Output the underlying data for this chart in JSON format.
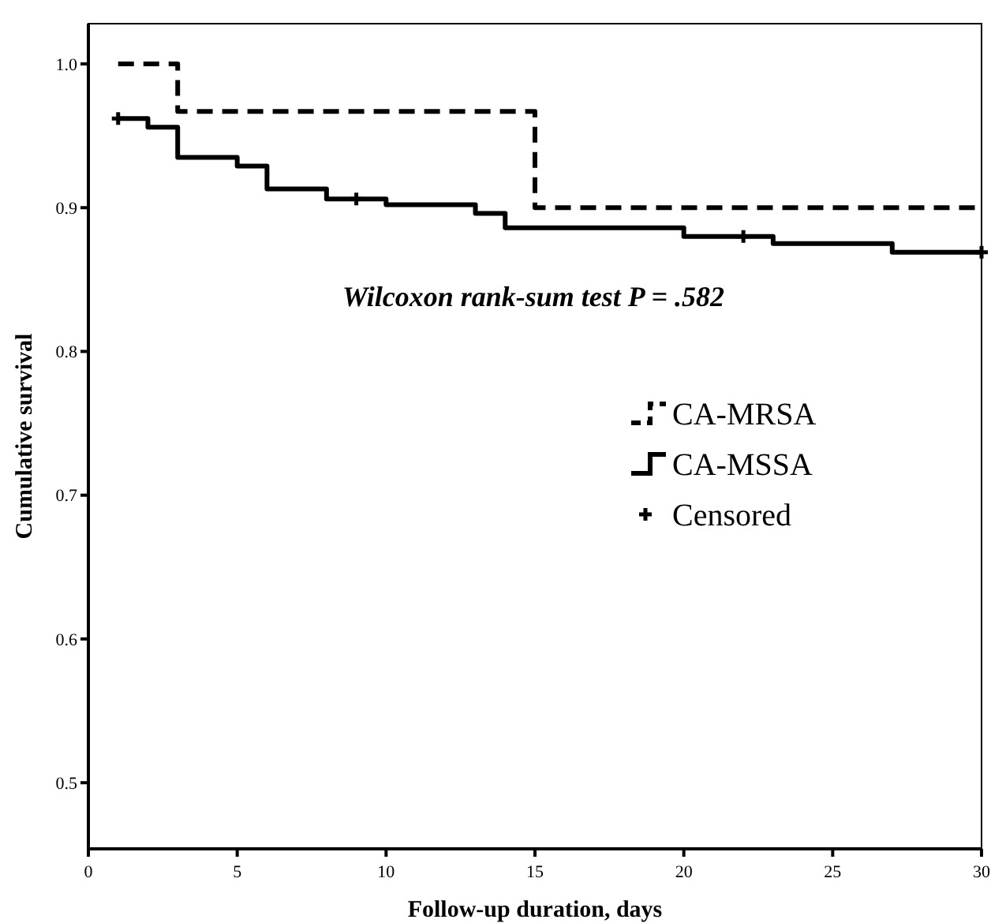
{
  "chart_data": {
    "type": "step",
    "xlabel": "Follow-up duration, days",
    "ylabel": "Cumulative survival",
    "annotations": [
      "Wilcoxon rank-sum test P = .582"
    ],
    "xlim": [
      0,
      30
    ],
    "xticks": [
      0,
      5,
      10,
      15,
      20,
      25,
      30
    ],
    "ylim": [
      0.454,
      1.028
    ],
    "yticks": [
      0.5,
      0.6,
      0.7,
      0.8,
      0.9,
      {
        "value": 1,
        "label": "1.0"
      }
    ],
    "grid": false,
    "legend": "right",
    "series": [
      {
        "name": "CA-MRSA",
        "color": "#000000",
        "line_style": "dashed",
        "x": [
          1,
          3,
          15,
          30
        ],
        "values": [
          1.0,
          0.967,
          0.9,
          0.9
        ]
      },
      {
        "name": "CA-MSSA",
        "color": "#000000",
        "line_style": "solid",
        "x": [
          1,
          2,
          3,
          5,
          6,
          8,
          10,
          13,
          14,
          20,
          23,
          27,
          30
        ],
        "values": [
          0.962,
          0.956,
          0.935,
          0.929,
          0.913,
          0.906,
          0.902,
          0.896,
          0.886,
          0.88,
          0.875,
          0.869,
          0.869
        ]
      },
      {
        "name": "Censored",
        "type": "scatter",
        "color": "#000000",
        "marker": "cross",
        "x": [
          1,
          9,
          22,
          30
        ],
        "values": [
          0.962,
          0.906,
          0.88,
          0.869
        ]
      }
    ]
  }
}
